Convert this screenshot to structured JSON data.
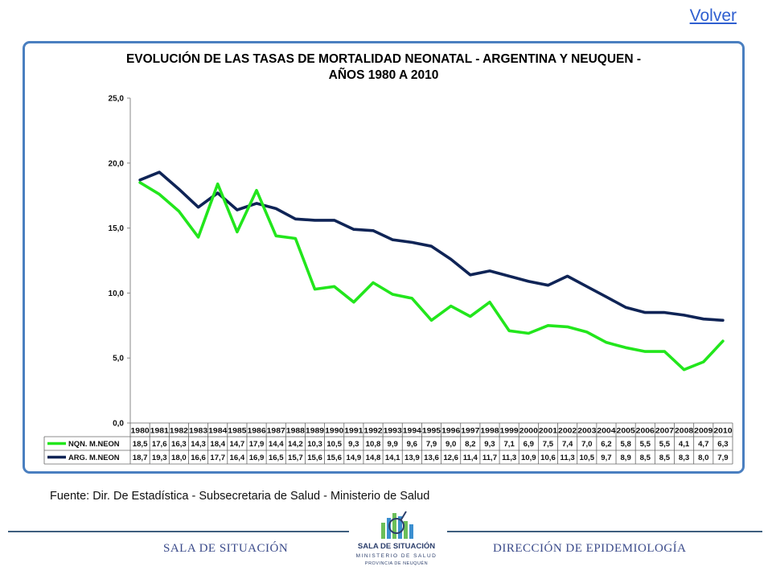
{
  "nav": {
    "volver_label": "Volver"
  },
  "footer": {
    "left": "SALA DE SITUACIÓN",
    "right": "DIRECCIÓN DE EPIDEMIOLOGÍA",
    "logo_title": "SALA DE SITUACIÓN",
    "logo_sub": "MINISTERIO DE SALUD",
    "logo_sub2": "PROVINCIA DE NEUQUÉN"
  },
  "source_note": "Fuente: Dir. De Estadística - Subsecretaria de Salud - Ministerio de Salud",
  "colors": {
    "nqn": "#22e61c",
    "arg": "#0f2456",
    "frame": "#4a7fc0"
  },
  "chart_data": {
    "type": "line",
    "title": "EVOLUCIÓN DE LAS TASAS DE MORTALIDAD NEONATAL - ARGENTINA Y NEUQUEN - AÑOS 1980 A 2010",
    "title_lines": [
      "EVOLUCIÓN DE LAS TASAS DE MORTALIDAD NEONATAL - ARGENTINA Y NEUQUEN -",
      "AÑOS 1980 A 2010"
    ],
    "xlabel": "",
    "ylabel": "",
    "ylim": [
      0,
      25
    ],
    "yticks": [
      "0,0",
      "5,0",
      "10,0",
      "15,0",
      "20,0",
      "25,0"
    ],
    "grid": false,
    "legend": "data-table-below",
    "x": [
      "1980",
      "1981",
      "1982",
      "1983",
      "1984",
      "1985",
      "1986",
      "1987",
      "1988",
      "1989",
      "1990",
      "1991",
      "1992",
      "1993",
      "1994",
      "1995",
      "1996",
      "1997",
      "1998",
      "1999",
      "2000",
      "2001",
      "2002",
      "2003",
      "2004",
      "2005",
      "2006",
      "2007",
      "2008",
      "2009",
      "2010"
    ],
    "series": [
      {
        "name": "NQN. M.NEON",
        "values": [
          18.5,
          17.6,
          16.3,
          14.3,
          18.4,
          14.7,
          17.9,
          14.4,
          14.2,
          10.3,
          10.5,
          9.3,
          10.8,
          9.9,
          9.6,
          7.9,
          9.0,
          8.2,
          9.3,
          7.1,
          6.9,
          7.5,
          7.4,
          7.0,
          6.2,
          5.8,
          5.5,
          5.5,
          4.1,
          4.7,
          6.3
        ],
        "labels": [
          "18,5",
          "17,6",
          "16,3",
          "14,3",
          "18,4",
          "14,7",
          "17,9",
          "14,4",
          "14,2",
          "10,3",
          "10,5",
          "9,3",
          "10,8",
          "9,9",
          "9,6",
          "7,9",
          "9,0",
          "8,2",
          "9,3",
          "7,1",
          "6,9",
          "7,5",
          "7,4",
          "7,0",
          "6,2",
          "5,8",
          "5,5",
          "5,5",
          "4,1",
          "4,7",
          "6,3"
        ]
      },
      {
        "name": "ARG. M.NEON",
        "values": [
          18.7,
          19.3,
          18.0,
          16.6,
          17.7,
          16.4,
          16.9,
          16.5,
          15.7,
          15.6,
          15.6,
          14.9,
          14.8,
          14.1,
          13.9,
          13.6,
          12.6,
          11.4,
          11.7,
          11.3,
          10.9,
          10.6,
          11.3,
          10.5,
          9.7,
          8.9,
          8.5,
          8.5,
          8.3,
          8.0,
          7.9
        ],
        "labels": [
          "18,7",
          "19,3",
          "18,0",
          "16,6",
          "17,7",
          "16,4",
          "16,9",
          "16,5",
          "15,7",
          "15,6",
          "15,6",
          "14,9",
          "14,8",
          "14,1",
          "13,9",
          "13,6",
          "12,6",
          "11,4",
          "11,7",
          "11,3",
          "10,9",
          "10,6",
          "11,3",
          "10,5",
          "9,7",
          "8,9",
          "8,5",
          "8,5",
          "8,3",
          "8,0",
          "7,9"
        ]
      }
    ]
  }
}
